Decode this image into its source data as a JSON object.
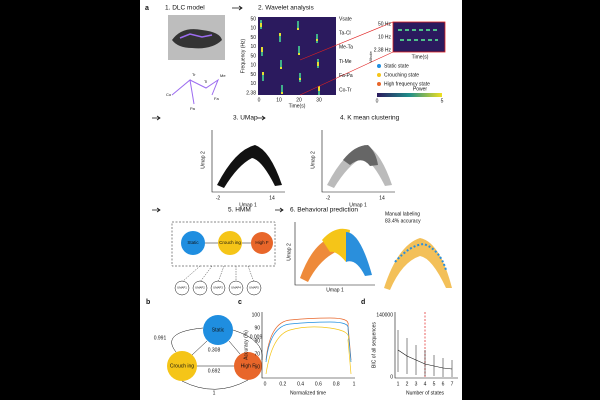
{
  "panel_a": {
    "label": "a",
    "step1": "1.  DLC model",
    "step2": "2. Wavelet analysis",
    "joints": [
      "Co",
      "Tr",
      "Pa",
      "Ti",
      "Me",
      "Fa"
    ],
    "freq_ticks": [
      "50",
      "10",
      "50",
      "10",
      "50",
      "10",
      "50",
      "10",
      "2.38"
    ],
    "freq_axis": "Frequency (Hz)",
    "time_ticks": [
      "0",
      "10",
      "20",
      "30"
    ],
    "time_axis": "Time(s)",
    "pairs": [
      "Vsate",
      "Ta-Cl",
      "Me-Ta",
      "Ti-Me",
      "Fa-Pa",
      "Co-Tr"
    ],
    "zoom_ticks": [
      "50 Hz",
      "10 Hz",
      "2.38 Hz"
    ],
    "zoom_time": "Time(s)",
    "whole": "Whole",
    "legend": [
      "Static state",
      "Crouching state",
      "High frequency state"
    ],
    "power": "Power",
    "power_ticks": [
      "0",
      "5"
    ],
    "step3": "3. UMap",
    "step4": "4. K mean clustering",
    "umap_x": "Umap 1",
    "umap_y": "Umap 2",
    "umap_ticks": [
      "-2",
      "14"
    ],
    "step5": "5. HMM",
    "states": [
      "Static",
      "Crouch ing",
      "High F"
    ],
    "observations": [
      "UMAP1",
      "UMAP2",
      "UMAP3",
      "UMAP4",
      "UMAP5"
    ],
    "step6": "6. Behavioral prediction",
    "manual": [
      "Manual labeling",
      "83.4% accuracy"
    ]
  },
  "panel_b": {
    "label": "b",
    "states": [
      "Static",
      "Crouch ing",
      "High F"
    ],
    "transitions": [
      "0.991",
      "0.308",
      "0.009",
      "0.692",
      "1"
    ]
  },
  "panel_c": {
    "label": "c",
    "y_axis": "Accuracy (%)",
    "yticks": [
      "100",
      "90",
      "80",
      "70",
      "60"
    ],
    "x_axis": "Normalized time",
    "xticks": [
      "0",
      "0.2",
      "0.4",
      "0.6",
      "0.8",
      "1"
    ]
  },
  "panel_d": {
    "label": "d",
    "y_axis": "BIC of all sequences",
    "yticks": [
      "140000",
      "0"
    ],
    "x_axis": "Number of states",
    "xticks": [
      "1",
      "2",
      "3",
      "4",
      "5",
      "6",
      "7"
    ]
  }
}
